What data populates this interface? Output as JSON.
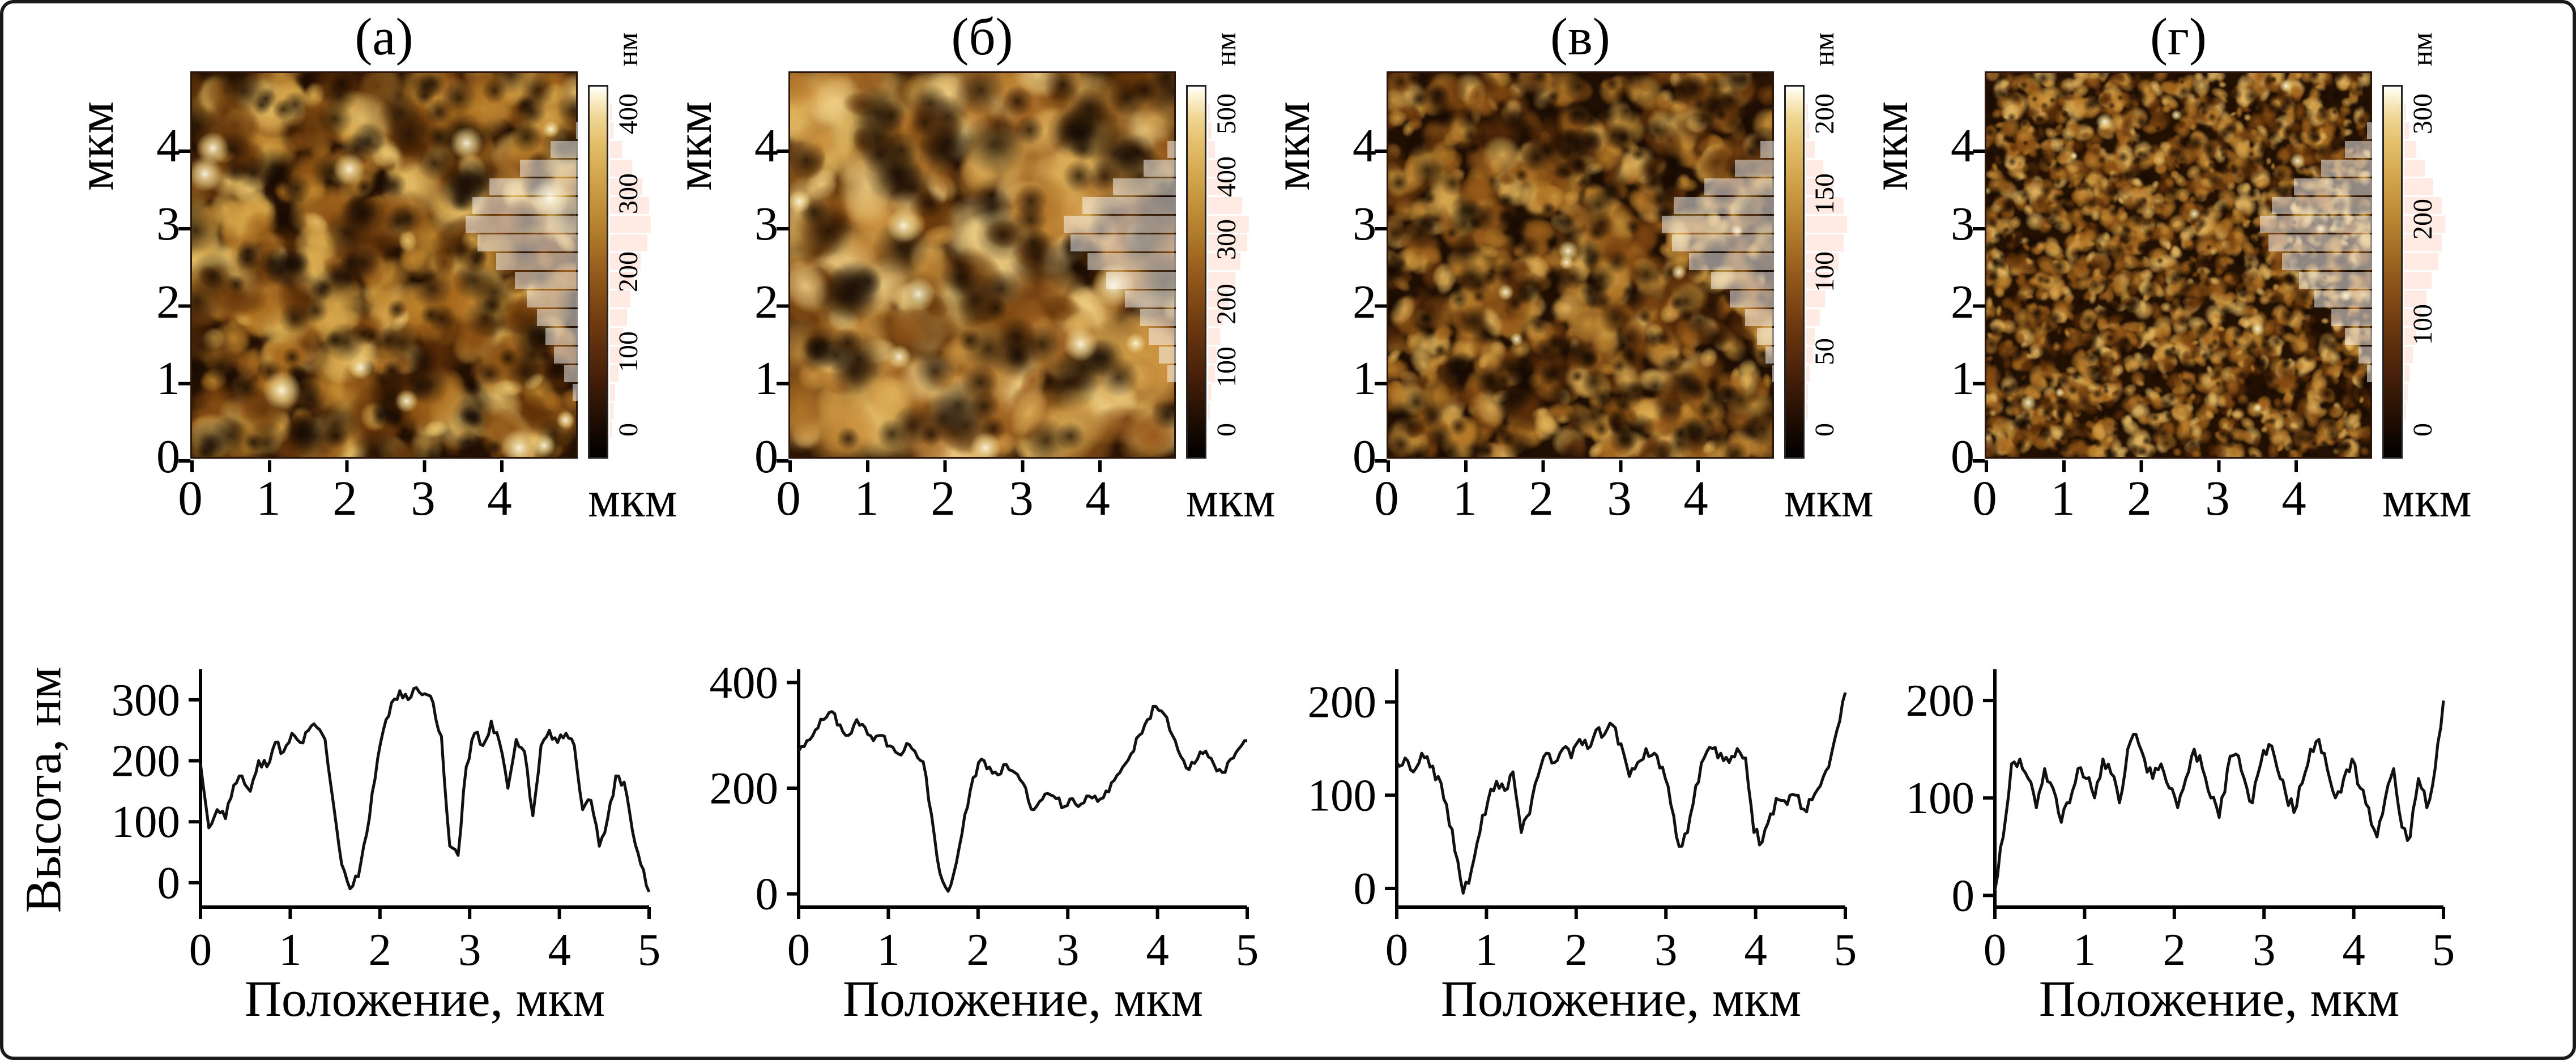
{
  "figure": {
    "background": "#ffffff",
    "border_color": "#1a1a1a",
    "profile_ylabel": "Высота, нм",
    "profile_xlabel": "Положение, мкм"
  },
  "panels": [
    {
      "title": "(а)",
      "afm": {
        "ylabel": "мкм",
        "xlabel": "мкм",
        "yticks": [
          "0",
          "1",
          "2",
          "3",
          "4"
        ],
        "xticks": [
          "0",
          "1",
          "2",
          "3",
          "4"
        ]
      },
      "colorbar": {
        "unit": "нм",
        "labels": [
          "400",
          "300",
          "200",
          "100",
          "0"
        ]
      },
      "histogram": [
        0.02,
        0.05,
        0.1,
        0.3,
        0.55,
        0.8,
        0.95,
        1.0,
        0.9,
        0.75,
        0.6,
        0.5,
        0.42,
        0.35,
        0.28,
        0.2,
        0.12,
        0.07,
        0.03,
        0.01
      ],
      "texture": {
        "seed": 11,
        "bg": "#241003",
        "grains": 550,
        "rmin": 14,
        "rmax": 44,
        "highlights": 12,
        "hr": 18,
        "pits": 150,
        "palette": [
          "#5f3007",
          "#8a4f12",
          "#a96a1e",
          "#c4892f",
          "#d9a94c",
          "#ebc66e"
        ]
      }
    },
    {
      "title": "(б)",
      "afm": {
        "ylabel": "мкм",
        "xlabel": "мкм",
        "yticks": [
          "0",
          "1",
          "2",
          "3",
          "4"
        ],
        "xticks": [
          "0",
          "1",
          "2",
          "3",
          "4"
        ]
      },
      "colorbar": {
        "unit": "нм",
        "labels": [
          "500",
          "400",
          "300",
          "200",
          "100",
          "0"
        ]
      },
      "histogram": [
        0.01,
        0.03,
        0.07,
        0.15,
        0.35,
        0.6,
        0.85,
        1.0,
        0.95,
        0.8,
        0.65,
        0.5,
        0.38,
        0.3,
        0.22,
        0.15,
        0.09,
        0.05,
        0.02,
        0.01
      ],
      "texture": {
        "seed": 22,
        "bg": "#2a1404",
        "grains": 420,
        "rmin": 18,
        "rmax": 54,
        "highlights": 8,
        "hr": 20,
        "pits": 100,
        "palette": [
          "#6b3a0a",
          "#96571a",
          "#b3762a",
          "#cc9340",
          "#e0b45c",
          "#f0d085"
        ]
      }
    },
    {
      "title": "(в)",
      "afm": {
        "ylabel": "мкм",
        "xlabel": "мкм",
        "yticks": [
          "0",
          "1",
          "2",
          "3",
          "4"
        ],
        "xticks": [
          "0",
          "1",
          "2",
          "3",
          "4"
        ]
      },
      "colorbar": {
        "unit": "нм",
        "labels": [
          "200",
          "150",
          "100",
          "50",
          "0"
        ]
      },
      "histogram": [
        0.02,
        0.04,
        0.09,
        0.2,
        0.4,
        0.65,
        0.9,
        1.0,
        0.92,
        0.78,
        0.6,
        0.45,
        0.32,
        0.22,
        0.15,
        0.1,
        0.06,
        0.03,
        0.02,
        0.01
      ],
      "texture": {
        "seed": 33,
        "bg": "#1f0e03",
        "grains": 900,
        "rmin": 10,
        "rmax": 28,
        "highlights": 6,
        "hr": 12,
        "pits": 260,
        "palette": [
          "#542a08",
          "#7c4410",
          "#9a5d1a",
          "#b57a28",
          "#cc963c",
          "#dfb158"
        ]
      }
    },
    {
      "title": "(г)",
      "afm": {
        "ylabel": "мкм",
        "xlabel": "мкм",
        "yticks": [
          "0",
          "1",
          "2",
          "3",
          "4"
        ],
        "xticks": [
          "0",
          "1",
          "2",
          "3",
          "4"
        ]
      },
      "colorbar": {
        "unit": "нм",
        "labels": [
          "300",
          "200",
          "100",
          "0"
        ]
      },
      "histogram": [
        0.01,
        0.04,
        0.12,
        0.3,
        0.5,
        0.72,
        0.9,
        1.0,
        0.93,
        0.82,
        0.68,
        0.55,
        0.42,
        0.3,
        0.2,
        0.13,
        0.08,
        0.04,
        0.02,
        0.01
      ],
      "texture": {
        "seed": 44,
        "bg": "#221003",
        "grains": 2200,
        "rmin": 5,
        "rmax": 15,
        "highlights": 12,
        "hr": 8,
        "pits": 500,
        "palette": [
          "#5a2d08",
          "#864c12",
          "#a4651e",
          "#bd802c",
          "#d29c44",
          "#e4b862"
        ]
      }
    }
  ],
  "chart_data": [
    {
      "type": "line",
      "x_range": [
        0,
        5
      ],
      "xticks": [
        0,
        1,
        2,
        3,
        4,
        5
      ],
      "yticks": [
        0,
        100,
        200,
        300
      ],
      "ylim": [
        -40,
        350
      ],
      "xlabel": "Положение, мкм",
      "noise": 9,
      "seed": 21,
      "values": [
        195,
        90,
        120,
        105,
        160,
        175,
        150,
        200,
        190,
        230,
        215,
        245,
        230,
        250,
        255,
        235,
        130,
        30,
        -10,
        10,
        80,
        170,
        250,
        295,
        315,
        300,
        320,
        310,
        295,
        240,
        60,
        45,
        190,
        245,
        225,
        265,
        230,
        155,
        235,
        215,
        110,
        225,
        250,
        230,
        245,
        225,
        120,
        135,
        60,
        105,
        175,
        165,
        85,
        30,
        -15
      ]
    },
    {
      "type": "line",
      "x_range": [
        0,
        5
      ],
      "xticks": [
        0,
        1,
        2,
        3,
        4,
        5
      ],
      "yticks": [
        0,
        200,
        400
      ],
      "ylim": [
        -25,
        425
      ],
      "xlabel": "Положение, мкм",
      "noise": 9,
      "seed": 22,
      "values": [
        270,
        290,
        310,
        330,
        345,
        320,
        300,
        330,
        315,
        290,
        300,
        280,
        265,
        285,
        270,
        250,
        150,
        40,
        5,
        60,
        150,
        220,
        255,
        240,
        225,
        245,
        230,
        210,
        160,
        175,
        190,
        180,
        165,
        180,
        170,
        185,
        175,
        195,
        215,
        240,
        265,
        300,
        330,
        355,
        340,
        300,
        260,
        235,
        255,
        270,
        245,
        230,
        255,
        275,
        290
      ]
    },
    {
      "type": "line",
      "x_range": [
        0,
        5
      ],
      "xticks": [
        0,
        1,
        2,
        3,
        4,
        5
      ],
      "yticks": [
        0,
        100,
        200
      ],
      "ylim": [
        -20,
        235
      ],
      "xlabel": "Положение, мкм",
      "noise": 7,
      "seed": 23,
      "values": [
        135,
        140,
        125,
        145,
        130,
        120,
        90,
        40,
        -5,
        20,
        60,
        95,
        115,
        105,
        125,
        60,
        80,
        120,
        145,
        135,
        150,
        140,
        160,
        150,
        170,
        165,
        175,
        155,
        120,
        135,
        150,
        145,
        130,
        90,
        45,
        60,
        110,
        140,
        150,
        145,
        135,
        150,
        140,
        60,
        50,
        80,
        95,
        90,
        100,
        85,
        95,
        110,
        130,
        170,
        210
      ]
    },
    {
      "type": "line",
      "x_range": [
        0,
        5
      ],
      "xticks": [
        0,
        1,
        2,
        3,
        4,
        5
      ],
      "yticks": [
        0,
        100,
        200
      ],
      "ylim": [
        -12,
        232
      ],
      "xlabel": "Положение, мкм",
      "noise": 8,
      "seed": 24,
      "values": [
        5,
        60,
        135,
        140,
        120,
        90,
        130,
        110,
        75,
        95,
        130,
        120,
        100,
        140,
        125,
        95,
        150,
        165,
        140,
        120,
        135,
        110,
        90,
        120,
        150,
        130,
        100,
        80,
        130,
        145,
        120,
        95,
        135,
        155,
        130,
        105,
        85,
        115,
        150,
        160,
        130,
        100,
        120,
        140,
        110,
        90,
        60,
        100,
        130,
        70,
        60,
        120,
        90,
        130,
        200
      ]
    }
  ]
}
